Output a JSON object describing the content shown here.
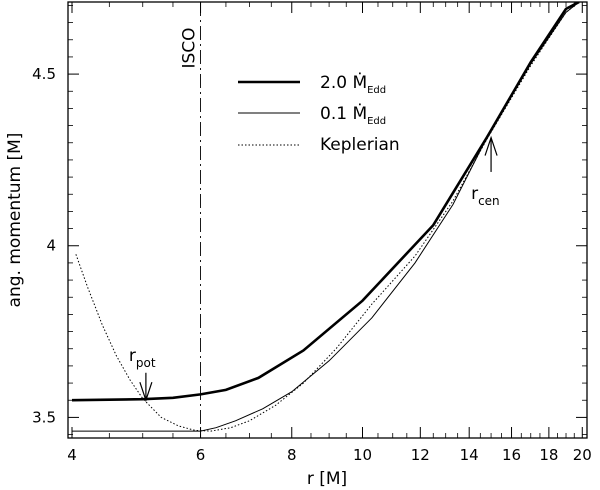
{
  "chart_data": {
    "type": "line",
    "title": "",
    "xlabel": "r [M]",
    "ylabel": "ang. momentum [M]",
    "xscale": "log",
    "xlim": [
      3.95,
      20.3
    ],
    "ylim": [
      3.44,
      4.71
    ],
    "xticks_major": [
      {
        "value": 4,
        "label": "4"
      },
      {
        "value": 6,
        "label": "6"
      },
      {
        "value": 8,
        "label": "8"
      },
      {
        "value": 10,
        "label": "10"
      },
      {
        "value": 12,
        "label": "12"
      },
      {
        "value": 14,
        "label": "14"
      },
      {
        "value": 16,
        "label": "16"
      },
      {
        "value": 18,
        "label": "18"
      },
      {
        "value": 20,
        "label": "20"
      }
    ],
    "yticks_major": [
      {
        "value": 3.5,
        "label": "3.5"
      },
      {
        "value": 4.0,
        "label": "4"
      },
      {
        "value": 4.5,
        "label": "4.5"
      }
    ],
    "series": [
      {
        "name": "2.0 Ṁ_Edd",
        "style": "thick",
        "x": [
          4.0,
          5.0,
          5.5,
          6.0,
          6.5,
          7.2,
          8.3,
          10.0,
          12.5,
          14.8,
          17.0,
          19.0,
          19.8
        ],
        "y": [
          3.55,
          3.553,
          3.557,
          3.567,
          3.58,
          3.615,
          3.695,
          3.84,
          4.06,
          4.315,
          4.535,
          4.69,
          4.71
        ]
      },
      {
        "name": "0.1 Ṁ_Edd",
        "style": "thin",
        "x": [
          4.0,
          6.0,
          6.3,
          6.7,
          7.3,
          8.0,
          9.0,
          10.3,
          11.8,
          13.3,
          14.8,
          17.0,
          19.0,
          19.8
        ],
        "y": [
          3.46,
          3.46,
          3.47,
          3.49,
          3.525,
          3.575,
          3.665,
          3.79,
          3.95,
          4.12,
          4.315,
          4.53,
          4.68,
          4.71
        ]
      },
      {
        "name": "Keplerian",
        "style": "dotted",
        "x": [
          4.05,
          4.2,
          4.4,
          4.6,
          4.8,
          5.0,
          5.3,
          5.6,
          5.9,
          6.2,
          6.6,
          7.0,
          7.6,
          8.3,
          9.2,
          10.3,
          11.8,
          13.3,
          14.8,
          17.0,
          19.0,
          19.8
        ],
        "y": [
          3.975,
          3.88,
          3.77,
          3.68,
          3.61,
          3.555,
          3.5,
          3.475,
          3.462,
          3.46,
          3.47,
          3.49,
          3.535,
          3.6,
          3.7,
          3.83,
          3.97,
          4.13,
          4.31,
          4.525,
          4.68,
          4.71
        ]
      }
    ],
    "legend": {
      "position": "top-center",
      "entries": [
        {
          "series": "2.0 Ṁ_Edd",
          "main": "2.0 Ṁ",
          "sub": "Edd"
        },
        {
          "series": "0.1 Ṁ_Edd",
          "main": "0.1 Ṁ",
          "sub": "Edd"
        },
        {
          "series": "Keplerian",
          "main": "Keplerian",
          "sub": ""
        }
      ]
    },
    "annotations": {
      "isco": {
        "label": "ISCO",
        "x": 6.0
      },
      "r_pot": {
        "main": "r",
        "sub": "pot",
        "x": 5.05,
        "y_tip": 3.55,
        "y_tail": 3.63
      },
      "r_cen": {
        "main": "r",
        "sub": "cen",
        "x": 15.0,
        "y_tip": 4.315,
        "y_tail": 4.215
      }
    }
  }
}
